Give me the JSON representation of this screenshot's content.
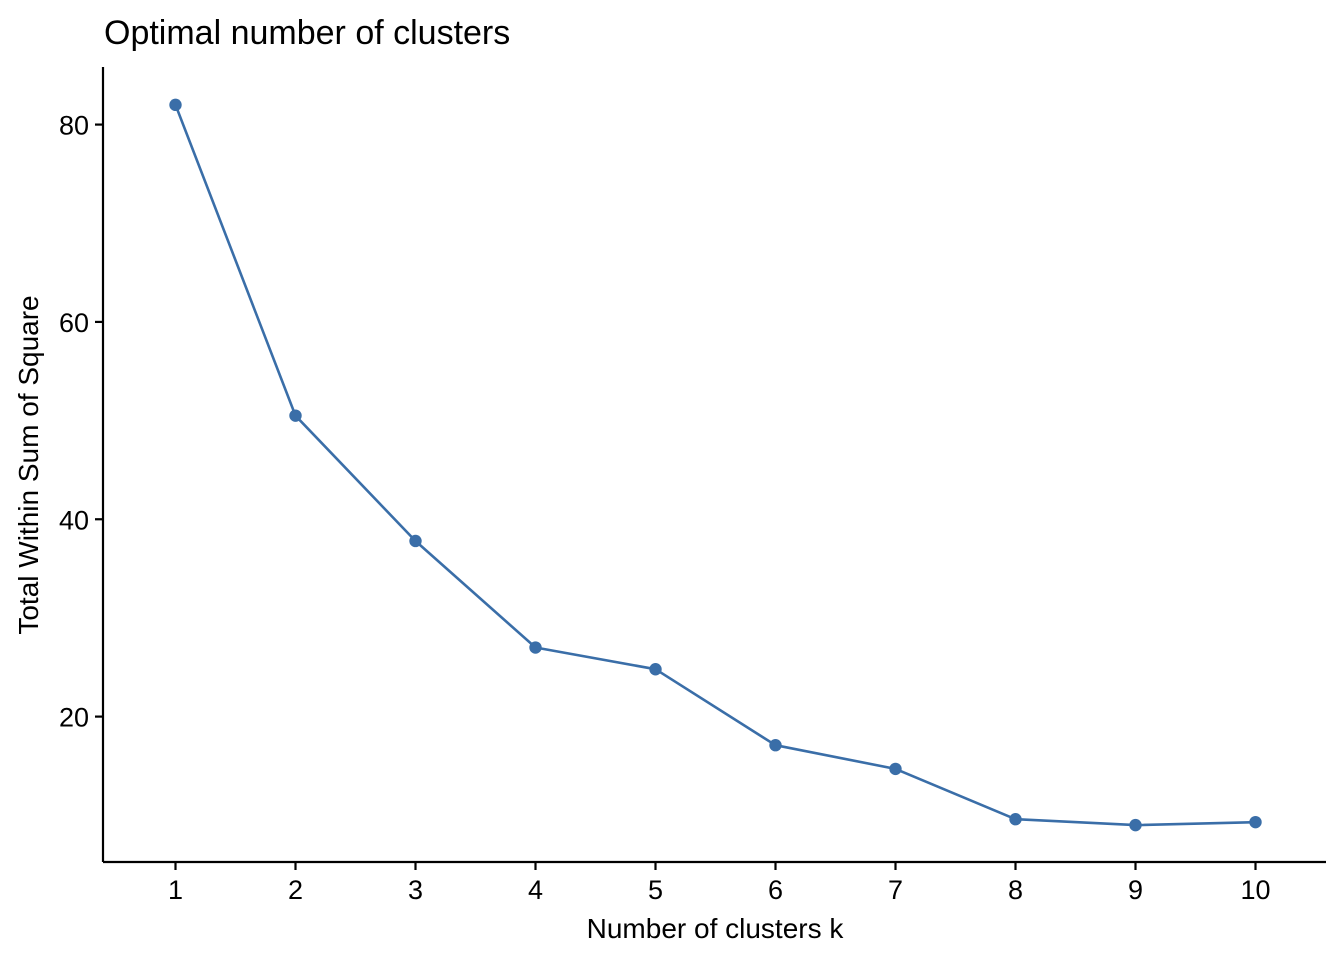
{
  "chart_data": {
    "type": "line",
    "title": "Optimal number of clusters",
    "xlabel": "Number of clusters k",
    "ylabel": "Total Within Sum of Square",
    "x": [
      1,
      2,
      3,
      4,
      5,
      6,
      7,
      8,
      9,
      10
    ],
    "series": [
      {
        "values": [
          82.0,
          50.5,
          37.8,
          27.0,
          24.8,
          17.1,
          14.7,
          9.6,
          9.0,
          9.3
        ]
      }
    ],
    "xticks": [
      "1",
      "2",
      "3",
      "4",
      "5",
      "6",
      "7",
      "8",
      "9",
      "10"
    ],
    "yticks": [
      "20",
      "40",
      "60",
      "80"
    ],
    "ylim": [
      5.16,
      85.84
    ],
    "grid": false,
    "line_color": "#3A6EA8"
  }
}
